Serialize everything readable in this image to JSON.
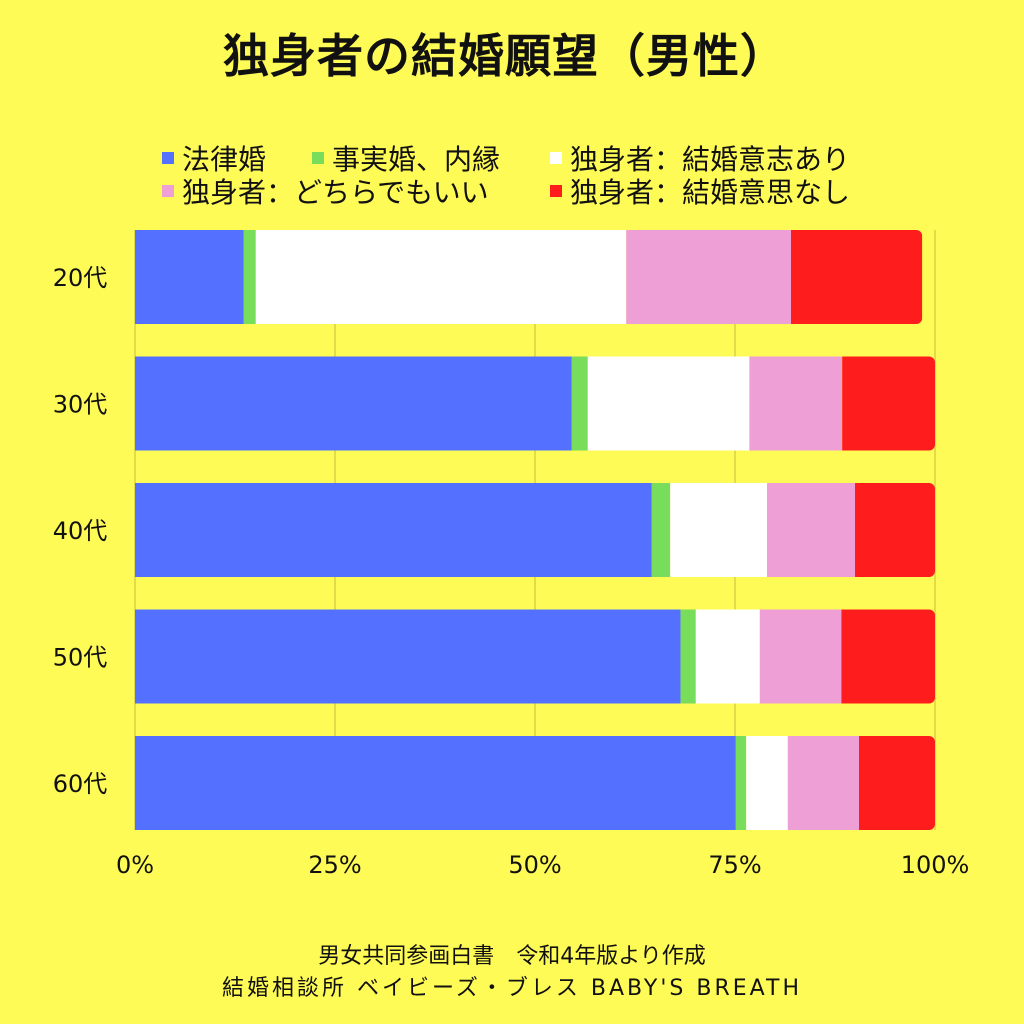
{
  "chart_data": {
    "type": "bar",
    "orientation": "horizontal",
    "stacked": true,
    "title": "独身者の結婚願望（男性）",
    "categories": [
      "20代",
      "30代",
      "40代",
      "50代",
      "60代"
    ],
    "series": [
      {
        "name": "法律婚",
        "color": "#5370FF",
        "values": [
          13.6,
          54.6,
          64.6,
          68.2,
          75.1
        ]
      },
      {
        "name": "事実婚、内縁",
        "color": "#77DD5A",
        "values": [
          1.5,
          2.0,
          2.3,
          1.9,
          1.3
        ]
      },
      {
        "name": "独身者：結婚意志あり",
        "color": "#FFFFFF",
        "values": [
          46.3,
          20.2,
          12.1,
          8.0,
          5.2
        ]
      },
      {
        "name": "独身者：どちらでもいい",
        "color": "#EE9FD5",
        "values": [
          20.6,
          11.6,
          11.0,
          10.2,
          8.9
        ]
      },
      {
        "name": "独身者：結婚意思なし",
        "color": "#FF1C1C",
        "values": [
          16.4,
          11.6,
          10.0,
          11.7,
          9.5
        ]
      }
    ],
    "xlim": [
      0,
      100
    ],
    "xticks": [
      "0%",
      "25%",
      "50%",
      "75%",
      "100%"
    ],
    "grid": true,
    "legend_position": "top"
  },
  "footer": {
    "source": "男女共同参画白書　令和4年版より作成",
    "credit": "結婚相談所 ベイビーズ・ブレス BABY'S BREATH"
  },
  "colors": {
    "background": "#FFFB56",
    "gridline": "#D9D24A"
  }
}
